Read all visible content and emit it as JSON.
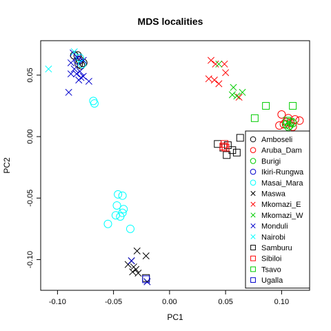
{
  "chart_data": {
    "type": "scatter",
    "title": "MDS localities",
    "xlabel": "PC1",
    "ylabel": "PC2",
    "xlim": [
      -0.115,
      0.125
    ],
    "ylim": [
      -0.125,
      0.078
    ],
    "xticks": [
      -0.1,
      -0.05,
      0.0,
      0.05,
      0.1
    ],
    "xtick_labels": [
      "-0.10",
      "-0.05",
      "0.00",
      "0.05",
      "0.10"
    ],
    "yticks": [
      -0.1,
      -0.05,
      0.0,
      0.05
    ],
    "ytick_labels": [
      "-0.10",
      "-0.05",
      "0.00",
      "0.05"
    ],
    "grid": false,
    "legend_position": "right",
    "series": [
      {
        "name": "Amboseli",
        "marker": "circle",
        "color": "#000000",
        "points": [
          [
            -0.085,
            0.066
          ],
          [
            -0.082,
            0.066
          ],
          [
            -0.08,
            0.062
          ],
          [
            -0.079,
            0.058
          ],
          [
            -0.077,
            0.06
          ],
          [
            -0.081,
            0.059
          ]
        ]
      },
      {
        "name": "Aruba_Dam",
        "marker": "circle",
        "color": "#ff0000",
        "points": [
          [
            0.1,
            0.018
          ],
          [
            0.104,
            0.012
          ],
          [
            0.108,
            0.011
          ],
          [
            0.112,
            0.014
          ],
          [
            0.116,
            0.013
          ],
          [
            0.106,
            0.015
          ],
          [
            0.102,
            0.01
          ],
          [
            0.098,
            0.009
          ],
          [
            0.11,
            0.008
          ]
        ]
      },
      {
        "name": "Burigi",
        "marker": "circle",
        "color": "#00cc00",
        "points": [
          [
            0.104,
            0.01
          ],
          [
            0.107,
            0.009
          ],
          [
            0.11,
            0.011
          ],
          [
            0.106,
            0.008
          ]
        ]
      },
      {
        "name": "Ikiri-Rungwa",
        "marker": "circle",
        "color": "#0000cc",
        "points": [
          [
            -0.082,
            0.062
          ]
        ]
      },
      {
        "name": "Masai_Mara",
        "marker": "circle",
        "color": "#00ffff",
        "points": [
          [
            -0.08,
            0.064
          ],
          [
            -0.078,
            0.059
          ],
          [
            -0.068,
            0.029
          ],
          [
            -0.067,
            0.027
          ],
          [
            -0.046,
            -0.047
          ],
          [
            -0.042,
            -0.048
          ],
          [
            -0.047,
            -0.056
          ],
          [
            -0.041,
            -0.059
          ],
          [
            -0.042,
            -0.062
          ],
          [
            -0.044,
            -0.065
          ],
          [
            -0.048,
            -0.064
          ],
          [
            -0.055,
            -0.071
          ],
          [
            -0.035,
            -0.075
          ]
        ]
      },
      {
        "name": "Maswa",
        "marker": "cross",
        "color": "#000000",
        "points": [
          [
            -0.037,
            -0.104
          ],
          [
            -0.034,
            -0.101
          ],
          [
            -0.032,
            -0.106
          ],
          [
            -0.03,
            -0.108
          ],
          [
            -0.029,
            -0.093
          ],
          [
            -0.028,
            -0.111
          ],
          [
            -0.033,
            -0.11
          ],
          [
            -0.021,
            -0.097
          ],
          [
            -0.02,
            -0.118
          ]
        ]
      },
      {
        "name": "Mkomazi_E",
        "marker": "cross",
        "color": "#ff0000",
        "points": [
          [
            0.037,
            0.062
          ],
          [
            0.041,
            0.059
          ],
          [
            0.049,
            0.059
          ],
          [
            0.035,
            0.047
          ],
          [
            0.04,
            0.046
          ],
          [
            0.044,
            0.043
          ],
          [
            0.05,
            0.052
          ],
          [
            0.062,
            0.032
          ]
        ]
      },
      {
        "name": "Mkomazi_W",
        "marker": "cross",
        "color": "#00cc00",
        "points": [
          [
            0.044,
            0.059
          ],
          [
            0.057,
            0.04
          ],
          [
            0.065,
            0.036
          ],
          [
            0.06,
            0.033
          ],
          [
            0.056,
            0.034
          ]
        ]
      },
      {
        "name": "Monduli",
        "marker": "cross",
        "color": "#0000cc",
        "points": [
          [
            -0.086,
            0.068
          ],
          [
            -0.082,
            0.064
          ],
          [
            -0.077,
            0.062
          ],
          [
            -0.088,
            0.06
          ],
          [
            -0.085,
            0.055
          ],
          [
            -0.088,
            0.051
          ],
          [
            -0.083,
            0.051
          ],
          [
            -0.08,
            0.053
          ],
          [
            -0.079,
            0.048
          ],
          [
            -0.077,
            0.049
          ],
          [
            -0.072,
            0.045
          ],
          [
            -0.09,
            0.036
          ],
          [
            -0.081,
            0.046
          ],
          [
            -0.034,
            -0.101
          ],
          [
            -0.02,
            -0.118
          ]
        ]
      },
      {
        "name": "Nairobi",
        "marker": "cross",
        "color": "#00ffff",
        "points": [
          [
            -0.108,
            0.055
          ],
          [
            -0.085,
            0.069
          ]
        ]
      },
      {
        "name": "Samburu",
        "marker": "square",
        "color": "#000000",
        "points": [
          [
            0.063,
            -0.001
          ],
          [
            0.043,
            -0.006
          ],
          [
            0.048,
            -0.009
          ],
          [
            0.052,
            -0.007
          ],
          [
            0.056,
            -0.011
          ],
          [
            0.051,
            -0.015
          ],
          [
            0.06,
            -0.013
          ],
          [
            -0.021,
            -0.115
          ]
        ]
      },
      {
        "name": "Sibiloi",
        "marker": "square",
        "color": "#ff0000",
        "points": [
          [
            0.049,
            -0.006
          ],
          [
            0.05,
            -0.009
          ],
          [
            0.048,
            -0.008
          ]
        ]
      },
      {
        "name": "Tsavo",
        "marker": "square",
        "color": "#00cc00",
        "points": [
          [
            0.086,
            0.025
          ],
          [
            0.076,
            0.015
          ],
          [
            0.11,
            0.025
          ],
          [
            0.105,
            0.013
          ],
          [
            0.108,
            0.012
          ]
        ]
      },
      {
        "name": "Ugalla",
        "marker": "square",
        "color": "#0000cc",
        "points": [
          [
            -0.021,
            -0.116
          ]
        ]
      }
    ]
  }
}
